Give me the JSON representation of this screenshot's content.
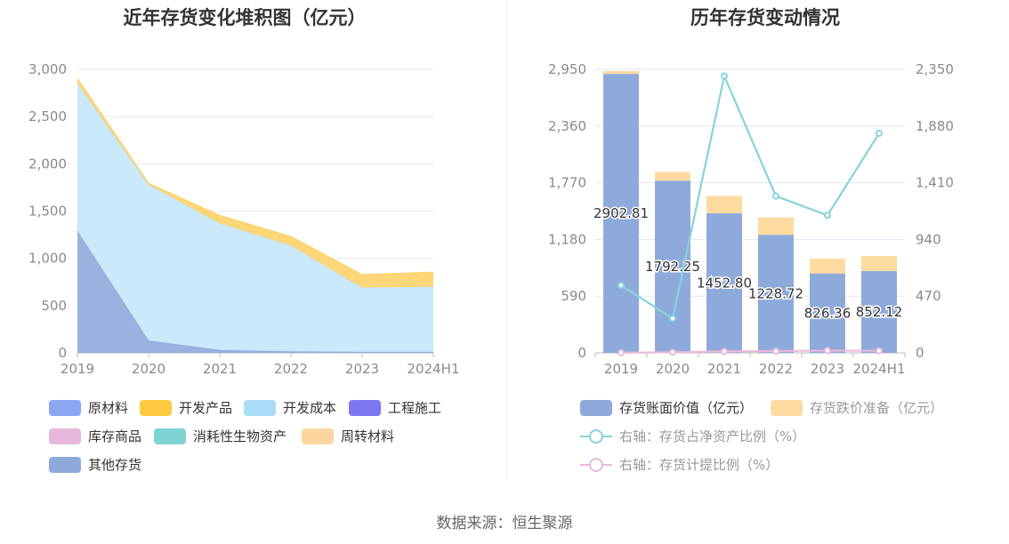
{
  "left_title": "近年存货变化堆积图（亿元）",
  "right_title": "历年存货变动情况",
  "source": "数据来源：恒生聚源",
  "chart_data": [
    {
      "type": "area",
      "stacked": true,
      "title": "近年存货变化堆积图（亿元）",
      "categories": [
        "2019",
        "2020",
        "2021",
        "2022",
        "2023",
        "2024H1"
      ],
      "ylim": [
        0,
        3000
      ],
      "yticks": [
        "0",
        "500",
        "1,000",
        "1,500",
        "2,000",
        "2,500",
        "3,000"
      ],
      "grid": true,
      "legend_position": "bottom",
      "series": [
        {
          "name": "其他存货",
          "values": [
            1290,
            130,
            30,
            15,
            10,
            10
          ],
          "color": "#8eaadb"
        },
        {
          "name": "原材料",
          "values": [
            0,
            0,
            0,
            0,
            0,
            0
          ],
          "color": "#8ba8f5"
        },
        {
          "name": "开发成本",
          "values": [
            1560,
            1650,
            1340,
            1120,
            680,
            690
          ],
          "color": "#c4e7fa"
        },
        {
          "name": "开发产品",
          "values": [
            50,
            12,
            83,
            94,
            136,
            152
          ],
          "color": "#fdd26a"
        },
        {
          "name": "工程施工",
          "values": [
            0,
            0,
            0,
            0,
            0,
            0
          ],
          "color": "#7b78ef"
        },
        {
          "name": "库存商品",
          "values": [
            0,
            0,
            0,
            0,
            0,
            0
          ],
          "color": "#e8b8dc"
        },
        {
          "name": "消耗性生物资产",
          "values": [
            0,
            0,
            0,
            0,
            0,
            0
          ],
          "color": "#7fd3d3"
        },
        {
          "name": "周转材料",
          "values": [
            0,
            0,
            0,
            0,
            0,
            0
          ],
          "color": "#fdd69f"
        }
      ],
      "legend": [
        {
          "label": "原材料",
          "color": "#8ba8f5"
        },
        {
          "label": "开发产品",
          "color": "#fdc93f"
        },
        {
          "label": "开发成本",
          "color": "#a9ddf7"
        },
        {
          "label": "工程施工",
          "color": "#7b78ef"
        },
        {
          "label": "库存商品",
          "color": "#e8b8dc"
        },
        {
          "label": "消耗性生物资产",
          "color": "#7fd3d3"
        },
        {
          "label": "周转材料",
          "color": "#fdd69f"
        },
        {
          "label": "其他存货",
          "color": "#8eaadb"
        }
      ]
    },
    {
      "type": "bar",
      "stacked": true,
      "title": "历年存货变动情况",
      "categories": [
        "2019",
        "2020",
        "2021",
        "2022",
        "2023",
        "2024H1"
      ],
      "ylim": [
        0,
        2950
      ],
      "yticks": [
        "0",
        "590",
        "1,180",
        "1,770",
        "2,360",
        "2,950"
      ],
      "y2lim": [
        0,
        2350
      ],
      "y2ticks": [
        "0",
        "470",
        "940",
        "1,410",
        "1,880",
        "2,350"
      ],
      "grid": true,
      "legend_position": "bottom",
      "series": [
        {
          "name": "存货账面价值（亿元）",
          "axis": "left",
          "values": [
            2902.81,
            1792.25,
            1452.8,
            1228.72,
            826.36,
            852.12
          ],
          "labels": [
            "2902.81",
            "1792.25",
            "1452.80",
            "1228.72",
            "826.36",
            "852.12"
          ],
          "color": "#8eaadb"
        },
        {
          "name": "存货跌价准备（亿元）",
          "axis": "left",
          "values": [
            30,
            90,
            180,
            180,
            155,
            155
          ],
          "color": "#fddba0"
        },
        {
          "name": "右轴：存货占净资产比例（%）",
          "axis": "right",
          "type": "line",
          "values": [
            560,
            285,
            2295,
            1300,
            1140,
            1820
          ],
          "color": "#86d4d9"
        },
        {
          "name": "右轴：存货计提比例（%）",
          "axis": "right",
          "type": "line",
          "values": [
            2,
            5,
            12,
            15,
            19,
            17
          ],
          "color": "#eab8db"
        }
      ]
    }
  ]
}
